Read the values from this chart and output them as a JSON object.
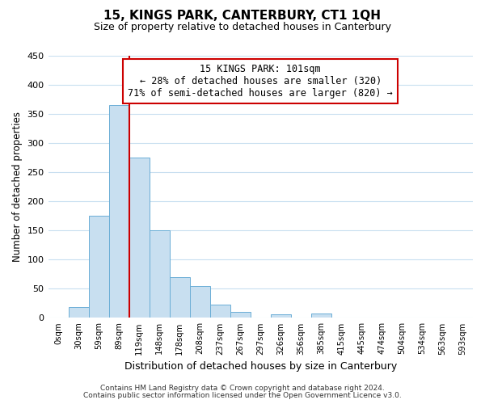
{
  "title": "15, KINGS PARK, CANTERBURY, CT1 1QH",
  "subtitle": "Size of property relative to detached houses in Canterbury",
  "xlabel": "Distribution of detached houses by size in Canterbury",
  "ylabel": "Number of detached properties",
  "footnote1": "Contains HM Land Registry data © Crown copyright and database right 2024.",
  "footnote2": "Contains public sector information licensed under the Open Government Licence v3.0.",
  "bin_labels": [
    "0sqm",
    "30sqm",
    "59sqm",
    "89sqm",
    "119sqm",
    "148sqm",
    "178sqm",
    "208sqm",
    "237sqm",
    "267sqm",
    "297sqm",
    "326sqm",
    "356sqm",
    "385sqm",
    "415sqm",
    "445sqm",
    "474sqm",
    "504sqm",
    "534sqm",
    "563sqm",
    "593sqm"
  ],
  "bar_heights": [
    0,
    18,
    175,
    365,
    275,
    150,
    70,
    55,
    23,
    10,
    0,
    6,
    0,
    7,
    0,
    0,
    1,
    0,
    0,
    0,
    1
  ],
  "bar_color": "#c8dff0",
  "bar_edge_color": "#6baed6",
  "ylim": [
    0,
    450
  ],
  "yticks": [
    0,
    50,
    100,
    150,
    200,
    250,
    300,
    350,
    400,
    450
  ],
  "property_label": "15 KINGS PARK: 101sqm",
  "annotation_line1": "← 28% of detached houses are smaller (320)",
  "annotation_line2": "71% of semi-detached houses are larger (820) →",
  "vline_color": "#cc0000",
  "background_color": "#ffffff",
  "grid_color": "#c8dff0"
}
